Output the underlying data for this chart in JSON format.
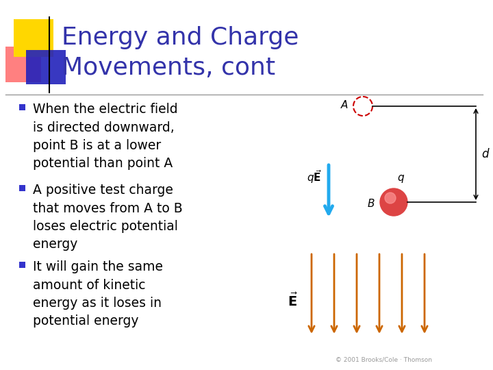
{
  "title_line1": "Energy and Charge",
  "title_line2": "Movements, cont",
  "title_color": "#3333AA",
  "title_fontsize": 26,
  "bg_color": "#FFFFFF",
  "bullet_square_color": "#3333CC",
  "body_fontsize": 13.5,
  "bullets": [
    "When the electric field\nis directed downward,\npoint B is at a lower\npotential than point A",
    "A positive test charge\nthat moves from A to B\nloses electric potential\nenergy",
    "It will gain the same\namount of kinetic\nenergy as it loses in\npotential energy"
  ],
  "logo_yellow": "#FFD700",
  "logo_red": "#FF5555",
  "logo_blue": "#2222BB",
  "arrow_color_orange": "#CC6600",
  "arrow_color_blue": "#22AAEE",
  "copyright": "© 2001 Brooks/Cole · Thomson"
}
